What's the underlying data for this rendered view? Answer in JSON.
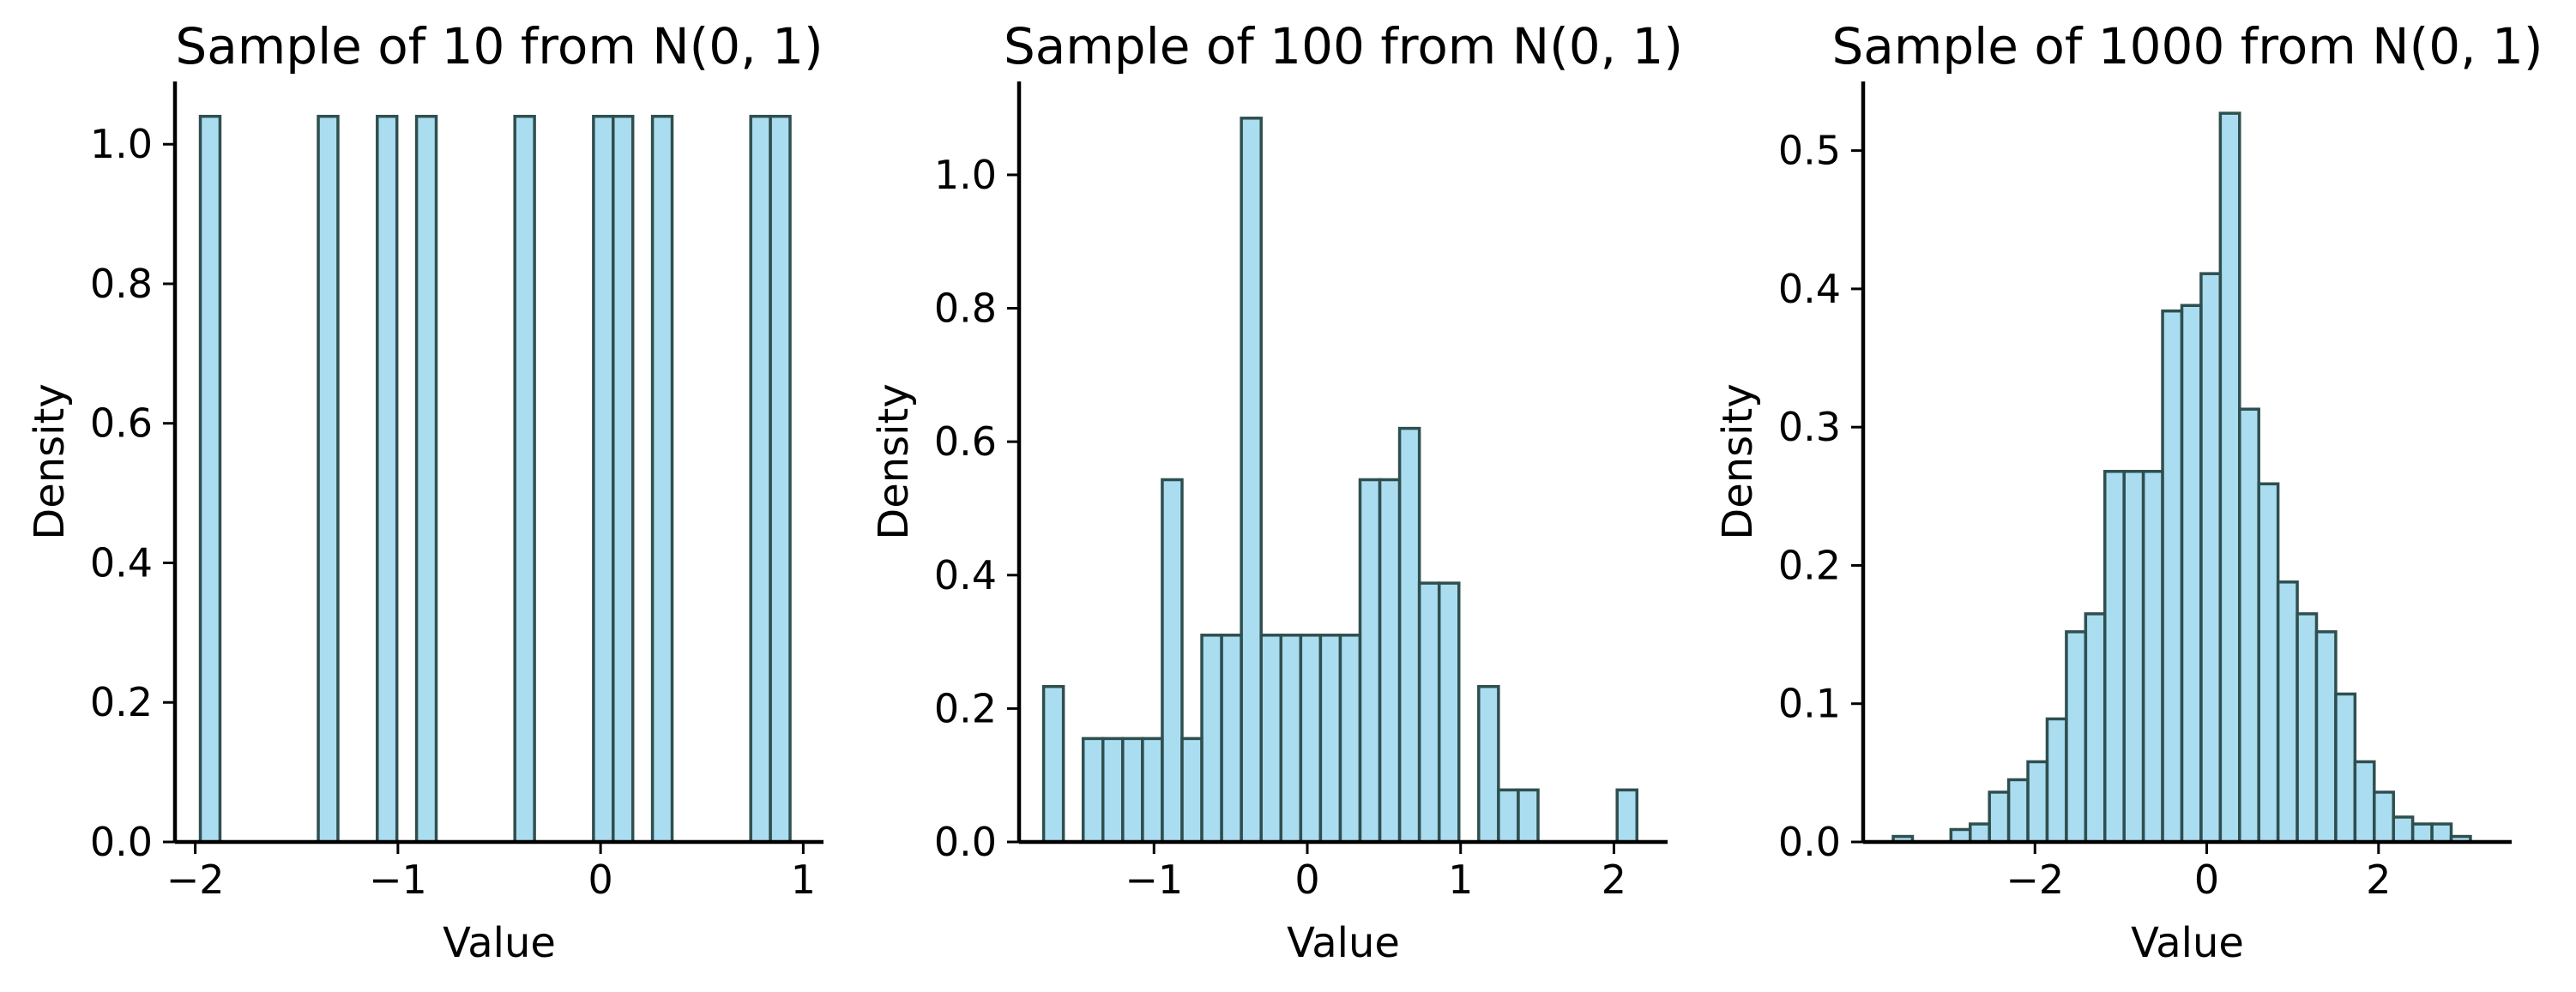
{
  "colors": {
    "bar_fill": "#87ceeb",
    "bar_stroke": "#2f4f4f",
    "axis": "#000000",
    "background": "#ffffff"
  },
  "chart_data": [
    {
      "type": "bar",
      "title": "Sample of 10 from N(0, 1)",
      "xlabel": "Value",
      "ylabel": "Density",
      "xlim": [
        -2.1,
        1.1
      ],
      "ylim": [
        0,
        1.09
      ],
      "xticks": [
        -2,
        -1,
        0,
        1
      ],
      "xtick_labels": [
        "−2",
        "−1",
        "0",
        "1"
      ],
      "yticks": [
        0.0,
        0.2,
        0.4,
        0.6,
        0.8,
        1.0
      ],
      "ytick_labels": [
        "0.0",
        "0.2",
        "0.4",
        "0.6",
        "0.8",
        "1.0"
      ],
      "bin_edges": [
        -1.975,
        -1.878,
        -1.781,
        -1.684,
        -1.587,
        -1.49,
        -1.393,
        -1.296,
        -1.199,
        -1.102,
        -1.005,
        -0.908,
        -0.811,
        -0.714,
        -0.617,
        -0.52,
        -0.423,
        -0.326,
        -0.229,
        -0.132,
        -0.035,
        0.062,
        0.159,
        0.256,
        0.353,
        0.45,
        0.547,
        0.644,
        0.741,
        0.838,
        0.935
      ],
      "values": [
        1.04,
        0,
        0,
        0,
        0,
        0,
        1.04,
        0,
        0,
        1.04,
        0,
        1.04,
        0,
        0,
        0,
        0,
        1.04,
        0,
        0,
        0,
        1.04,
        1.04,
        0,
        1.04,
        0,
        0,
        0,
        0,
        1.04,
        1.04
      ],
      "grid": false
    },
    {
      "type": "bar",
      "title": "Sample of 100 from N(0, 1)",
      "xlabel": "Value",
      "ylabel": "Density",
      "xlim": [
        -1.88,
        2.35
      ],
      "ylim": [
        0,
        1.14
      ],
      "xticks": [
        -1,
        0,
        1,
        2
      ],
      "xtick_labels": [
        "−1",
        "0",
        "1",
        "2"
      ],
      "yticks": [
        0.0,
        0.2,
        0.4,
        0.6,
        0.8,
        1.0
      ],
      "ytick_labels": [
        "0.0",
        "0.2",
        "0.4",
        "0.6",
        "0.8",
        "1.0"
      ],
      "bin_edges": [
        -1.72,
        -1.591,
        -1.462,
        -1.333,
        -1.204,
        -1.075,
        -0.946,
        -0.817,
        -0.688,
        -0.559,
        -0.43,
        -0.301,
        -0.172,
        -0.043,
        0.086,
        0.215,
        0.344,
        0.473,
        0.602,
        0.731,
        0.86,
        0.989,
        1.118,
        1.247,
        1.376,
        1.505,
        1.634,
        1.763,
        1.892,
        2.021,
        2.15
      ],
      "values": [
        0.233,
        0,
        0.155,
        0.155,
        0.155,
        0.155,
        0.543,
        0.155,
        0.31,
        0.31,
        1.085,
        0.31,
        0.31,
        0.31,
        0.31,
        0.31,
        0.543,
        0.543,
        0.62,
        0.388,
        0.388,
        0,
        0.233,
        0.078,
        0.078,
        0,
        0,
        0,
        0,
        0.078
      ],
      "grid": false
    },
    {
      "type": "bar",
      "title": "Sample of 1000 from N(0, 1)",
      "xlabel": "Value",
      "ylabel": "Density",
      "xlim": [
        -4.0,
        3.55
      ],
      "ylim": [
        0,
        0.55
      ],
      "xticks": [
        -2,
        0,
        2
      ],
      "xtick_labels": [
        "−2",
        "0",
        "2"
      ],
      "yticks": [
        0.0,
        0.1,
        0.2,
        0.3,
        0.4,
        0.5
      ],
      "ytick_labels": [
        "0.0",
        "0.1",
        "0.2",
        "0.3",
        "0.4",
        "0.5"
      ],
      "bin_edges": [
        -3.65,
        -3.426,
        -3.202,
        -2.978,
        -2.754,
        -2.53,
        -2.306,
        -2.082,
        -1.858,
        -1.634,
        -1.41,
        -1.186,
        -0.962,
        -0.738,
        -0.514,
        -0.29,
        -0.066,
        0.158,
        0.382,
        0.606,
        0.83,
        1.054,
        1.278,
        1.502,
        1.726,
        1.95,
        2.174,
        2.398,
        2.622,
        2.846,
        3.07
      ],
      "values": [
        0.004,
        0,
        0,
        0.009,
        0.013,
        0.036,
        0.045,
        0.058,
        0.089,
        0.152,
        0.165,
        0.268,
        0.268,
        0.268,
        0.384,
        0.388,
        0.411,
        0.527,
        0.313,
        0.259,
        0.188,
        0.165,
        0.152,
        0.107,
        0.058,
        0.036,
        0.018,
        0.013,
        0.013,
        0.004
      ],
      "grid": false
    }
  ]
}
